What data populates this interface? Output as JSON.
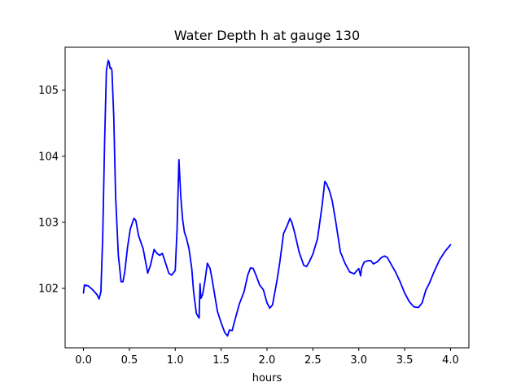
{
  "chart_data": {
    "type": "line",
    "title": "Water Depth h at gauge 130",
    "xlabel": "hours",
    "ylabel": "",
    "xlim": [
      -0.2,
      4.2
    ],
    "ylim": [
      101.1,
      105.65
    ],
    "xticks": [
      0.0,
      0.5,
      1.0,
      1.5,
      2.0,
      2.5,
      3.0,
      3.5,
      4.0
    ],
    "xtick_labels": [
      "0.0",
      "0.5",
      "1.0",
      "1.5",
      "2.0",
      "2.5",
      "3.0",
      "3.5",
      "4.0"
    ],
    "yticks": [
      102,
      103,
      104,
      105
    ],
    "ytick_labels": [
      "102",
      "103",
      "104",
      "105"
    ],
    "grid": false,
    "legend": "none",
    "series": [
      {
        "name": "",
        "color": "#0000ff",
        "x": [
          0.0,
          0.01,
          0.05,
          0.1,
          0.15,
          0.17,
          0.19,
          0.21,
          0.23,
          0.25,
          0.27,
          0.28,
          0.29,
          0.3,
          0.31,
          0.33,
          0.35,
          0.38,
          0.41,
          0.43,
          0.45,
          0.48,
          0.51,
          0.55,
          0.57,
          0.6,
          0.65,
          0.68,
          0.7,
          0.73,
          0.77,
          0.8,
          0.83,
          0.86,
          0.9,
          0.93,
          0.96,
          1.0,
          1.02,
          1.04,
          1.06,
          1.08,
          1.1,
          1.12,
          1.15,
          1.18,
          1.2,
          1.23,
          1.26,
          1.27,
          1.28,
          1.29,
          1.3,
          1.32,
          1.35,
          1.38,
          1.4,
          1.43,
          1.46,
          1.5,
          1.54,
          1.57,
          1.59,
          1.62,
          1.65,
          1.7,
          1.75,
          1.79,
          1.82,
          1.85,
          1.88,
          1.92,
          1.96,
          2.0,
          2.03,
          2.06,
          2.08,
          2.11,
          2.14,
          2.18,
          2.22,
          2.25,
          2.27,
          2.3,
          2.35,
          2.4,
          2.43,
          2.46,
          2.5,
          2.55,
          2.6,
          2.63,
          2.64,
          2.65,
          2.68,
          2.71,
          2.75,
          2.8,
          2.85,
          2.9,
          2.95,
          2.98,
          3.0,
          3.02,
          3.03,
          3.04,
          3.06,
          3.1,
          3.13,
          3.16,
          3.2,
          3.25,
          3.28,
          3.31,
          3.35,
          3.4,
          3.45,
          3.5,
          3.55,
          3.6,
          3.65,
          3.69,
          3.73,
          3.77,
          3.82,
          3.88,
          3.94,
          4.0
        ],
        "y": [
          101.93,
          102.05,
          102.04,
          101.98,
          101.9,
          101.84,
          101.95,
          102.8,
          104.2,
          105.3,
          105.45,
          105.42,
          105.33,
          105.34,
          105.3,
          104.6,
          103.4,
          102.5,
          102.1,
          102.1,
          102.25,
          102.62,
          102.9,
          103.06,
          103.03,
          102.8,
          102.6,
          102.38,
          102.23,
          102.35,
          102.59,
          102.53,
          102.5,
          102.53,
          102.36,
          102.23,
          102.2,
          102.27,
          102.9,
          103.95,
          103.4,
          103.05,
          102.85,
          102.77,
          102.6,
          102.3,
          101.95,
          101.62,
          101.55,
          102.07,
          101.85,
          101.88,
          101.92,
          102.08,
          102.38,
          102.3,
          102.15,
          101.9,
          101.65,
          101.48,
          101.33,
          101.28,
          101.37,
          101.36,
          101.52,
          101.77,
          101.95,
          102.2,
          102.31,
          102.3,
          102.2,
          102.05,
          101.98,
          101.78,
          101.7,
          101.75,
          101.9,
          102.13,
          102.4,
          102.83,
          102.95,
          103.06,
          103.0,
          102.85,
          102.55,
          102.35,
          102.33,
          102.4,
          102.52,
          102.75,
          103.25,
          103.62,
          103.6,
          103.58,
          103.48,
          103.33,
          103.0,
          102.55,
          102.38,
          102.25,
          102.22,
          102.27,
          102.3,
          102.19,
          102.3,
          102.34,
          102.4,
          102.42,
          102.42,
          102.37,
          102.4,
          102.47,
          102.49,
          102.47,
          102.37,
          102.25,
          102.1,
          101.93,
          101.8,
          101.72,
          101.71,
          101.78,
          101.97,
          102.08,
          102.25,
          102.43,
          102.56,
          102.66
        ]
      }
    ]
  }
}
